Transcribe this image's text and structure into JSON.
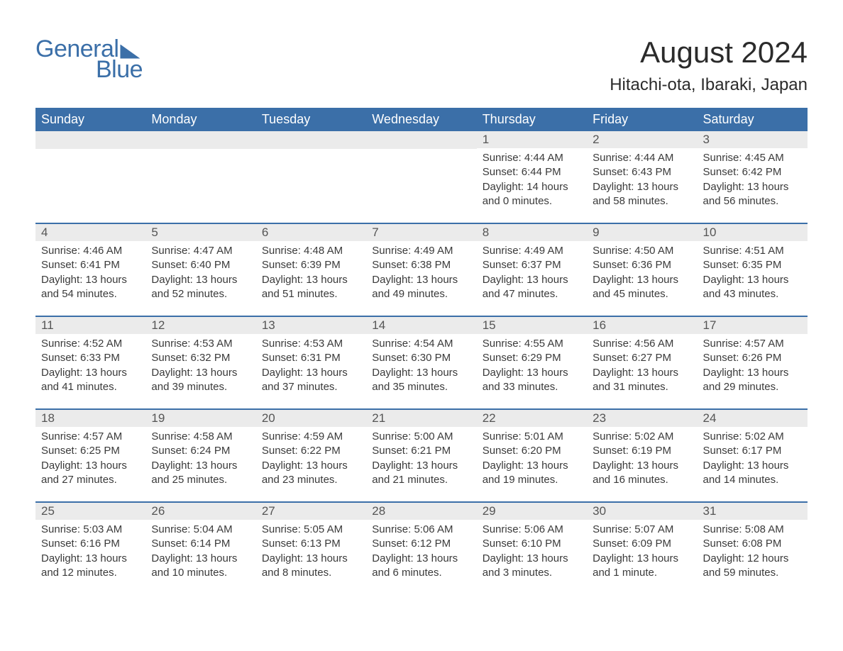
{
  "logo": {
    "text1": "General",
    "text2": "Blue"
  },
  "title": "August 2024",
  "subtitle": "Hitachi-ota, Ibaraki, Japan",
  "colors": {
    "header_bg": "#3b6fa8",
    "header_text": "#ffffff",
    "daynum_bg": "#ebebeb",
    "daynum_text": "#555555",
    "body_text": "#3a3a3a",
    "page_bg": "#ffffff",
    "logo_color": "#3b6fa8",
    "week_border": "#3b6fa8"
  },
  "day_labels": [
    "Sunday",
    "Monday",
    "Tuesday",
    "Wednesday",
    "Thursday",
    "Friday",
    "Saturday"
  ],
  "weeks": [
    [
      {
        "empty": true
      },
      {
        "empty": true
      },
      {
        "empty": true
      },
      {
        "empty": true
      },
      {
        "n": "1",
        "sr": "Sunrise: 4:44 AM",
        "ss": "Sunset: 6:44 PM",
        "dl": "Daylight: 14 hours and 0 minutes."
      },
      {
        "n": "2",
        "sr": "Sunrise: 4:44 AM",
        "ss": "Sunset: 6:43 PM",
        "dl": "Daylight: 13 hours and 58 minutes."
      },
      {
        "n": "3",
        "sr": "Sunrise: 4:45 AM",
        "ss": "Sunset: 6:42 PM",
        "dl": "Daylight: 13 hours and 56 minutes."
      }
    ],
    [
      {
        "n": "4",
        "sr": "Sunrise: 4:46 AM",
        "ss": "Sunset: 6:41 PM",
        "dl": "Daylight: 13 hours and 54 minutes."
      },
      {
        "n": "5",
        "sr": "Sunrise: 4:47 AM",
        "ss": "Sunset: 6:40 PM",
        "dl": "Daylight: 13 hours and 52 minutes."
      },
      {
        "n": "6",
        "sr": "Sunrise: 4:48 AM",
        "ss": "Sunset: 6:39 PM",
        "dl": "Daylight: 13 hours and 51 minutes."
      },
      {
        "n": "7",
        "sr": "Sunrise: 4:49 AM",
        "ss": "Sunset: 6:38 PM",
        "dl": "Daylight: 13 hours and 49 minutes."
      },
      {
        "n": "8",
        "sr": "Sunrise: 4:49 AM",
        "ss": "Sunset: 6:37 PM",
        "dl": "Daylight: 13 hours and 47 minutes."
      },
      {
        "n": "9",
        "sr": "Sunrise: 4:50 AM",
        "ss": "Sunset: 6:36 PM",
        "dl": "Daylight: 13 hours and 45 minutes."
      },
      {
        "n": "10",
        "sr": "Sunrise: 4:51 AM",
        "ss": "Sunset: 6:35 PM",
        "dl": "Daylight: 13 hours and 43 minutes."
      }
    ],
    [
      {
        "n": "11",
        "sr": "Sunrise: 4:52 AM",
        "ss": "Sunset: 6:33 PM",
        "dl": "Daylight: 13 hours and 41 minutes."
      },
      {
        "n": "12",
        "sr": "Sunrise: 4:53 AM",
        "ss": "Sunset: 6:32 PM",
        "dl": "Daylight: 13 hours and 39 minutes."
      },
      {
        "n": "13",
        "sr": "Sunrise: 4:53 AM",
        "ss": "Sunset: 6:31 PM",
        "dl": "Daylight: 13 hours and 37 minutes."
      },
      {
        "n": "14",
        "sr": "Sunrise: 4:54 AM",
        "ss": "Sunset: 6:30 PM",
        "dl": "Daylight: 13 hours and 35 minutes."
      },
      {
        "n": "15",
        "sr": "Sunrise: 4:55 AM",
        "ss": "Sunset: 6:29 PM",
        "dl": "Daylight: 13 hours and 33 minutes."
      },
      {
        "n": "16",
        "sr": "Sunrise: 4:56 AM",
        "ss": "Sunset: 6:27 PM",
        "dl": "Daylight: 13 hours and 31 minutes."
      },
      {
        "n": "17",
        "sr": "Sunrise: 4:57 AM",
        "ss": "Sunset: 6:26 PM",
        "dl": "Daylight: 13 hours and 29 minutes."
      }
    ],
    [
      {
        "n": "18",
        "sr": "Sunrise: 4:57 AM",
        "ss": "Sunset: 6:25 PM",
        "dl": "Daylight: 13 hours and 27 minutes."
      },
      {
        "n": "19",
        "sr": "Sunrise: 4:58 AM",
        "ss": "Sunset: 6:24 PM",
        "dl": "Daylight: 13 hours and 25 minutes."
      },
      {
        "n": "20",
        "sr": "Sunrise: 4:59 AM",
        "ss": "Sunset: 6:22 PM",
        "dl": "Daylight: 13 hours and 23 minutes."
      },
      {
        "n": "21",
        "sr": "Sunrise: 5:00 AM",
        "ss": "Sunset: 6:21 PM",
        "dl": "Daylight: 13 hours and 21 minutes."
      },
      {
        "n": "22",
        "sr": "Sunrise: 5:01 AM",
        "ss": "Sunset: 6:20 PM",
        "dl": "Daylight: 13 hours and 19 minutes."
      },
      {
        "n": "23",
        "sr": "Sunrise: 5:02 AM",
        "ss": "Sunset: 6:19 PM",
        "dl": "Daylight: 13 hours and 16 minutes."
      },
      {
        "n": "24",
        "sr": "Sunrise: 5:02 AM",
        "ss": "Sunset: 6:17 PM",
        "dl": "Daylight: 13 hours and 14 minutes."
      }
    ],
    [
      {
        "n": "25",
        "sr": "Sunrise: 5:03 AM",
        "ss": "Sunset: 6:16 PM",
        "dl": "Daylight: 13 hours and 12 minutes."
      },
      {
        "n": "26",
        "sr": "Sunrise: 5:04 AM",
        "ss": "Sunset: 6:14 PM",
        "dl": "Daylight: 13 hours and 10 minutes."
      },
      {
        "n": "27",
        "sr": "Sunrise: 5:05 AM",
        "ss": "Sunset: 6:13 PM",
        "dl": "Daylight: 13 hours and 8 minutes."
      },
      {
        "n": "28",
        "sr": "Sunrise: 5:06 AM",
        "ss": "Sunset: 6:12 PM",
        "dl": "Daylight: 13 hours and 6 minutes."
      },
      {
        "n": "29",
        "sr": "Sunrise: 5:06 AM",
        "ss": "Sunset: 6:10 PM",
        "dl": "Daylight: 13 hours and 3 minutes."
      },
      {
        "n": "30",
        "sr": "Sunrise: 5:07 AM",
        "ss": "Sunset: 6:09 PM",
        "dl": "Daylight: 13 hours and 1 minute."
      },
      {
        "n": "31",
        "sr": "Sunrise: 5:08 AM",
        "ss": "Sunset: 6:08 PM",
        "dl": "Daylight: 12 hours and 59 minutes."
      }
    ]
  ]
}
